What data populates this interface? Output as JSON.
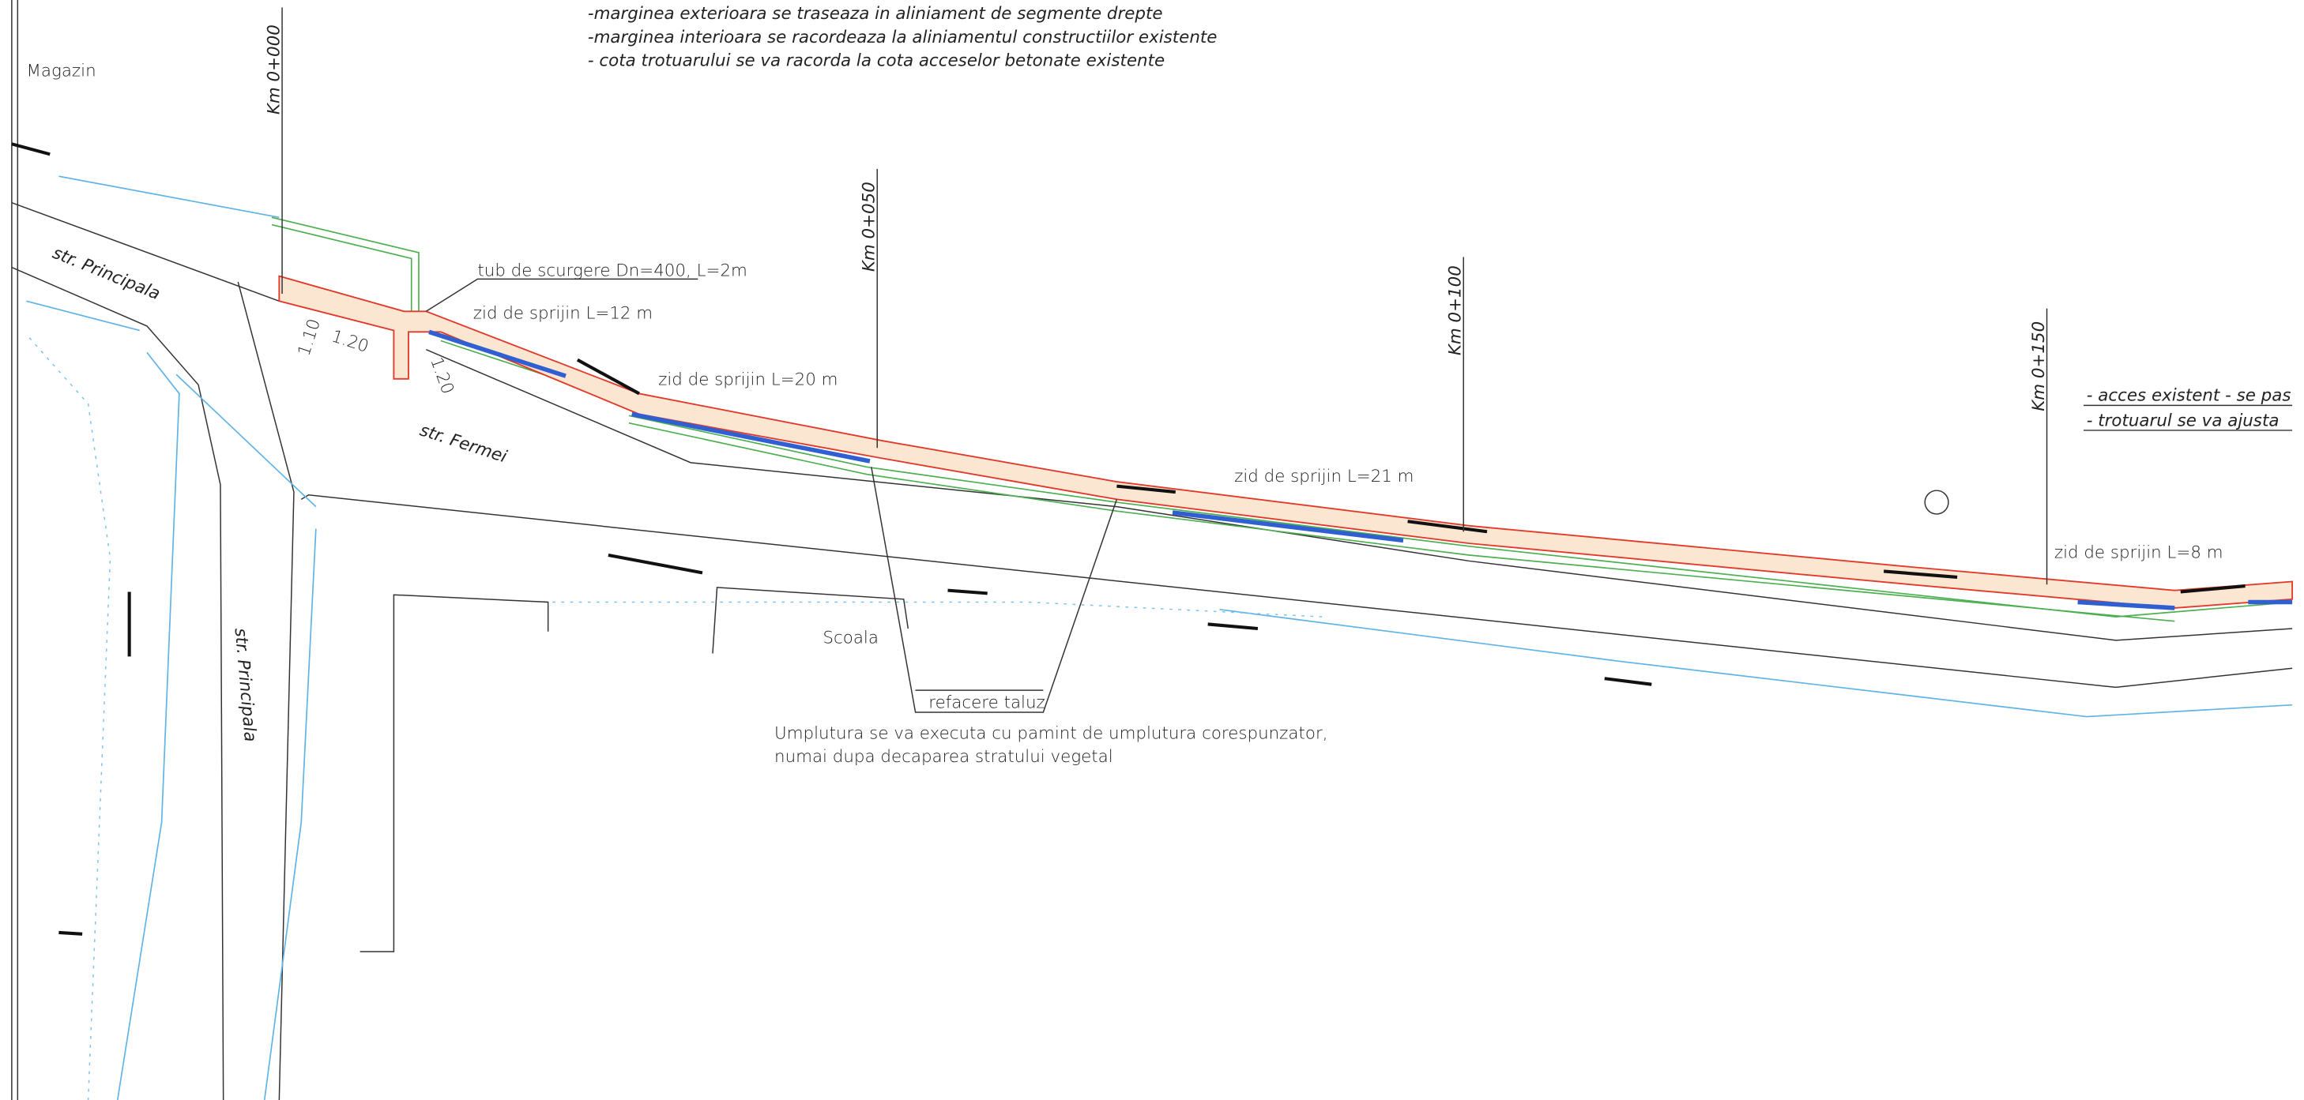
{
  "notes": [
    "-marginea exterioara se traseaza in aliniament de segmente drepte",
    "-marginea interioara se racordeaza la aliniamentul constructiilor existente",
    "- cota trotuarului se va racorda la cota acceselor betonate existente"
  ],
  "right_notes": [
    "- acces existent - se pas",
    "- trotuarul se va ajusta"
  ],
  "places": {
    "magazin": "Magazin",
    "principala_1": "str. Principala",
    "principala_2": "str. Principala",
    "fermei": "str. Fermei",
    "scoala": "Scoala"
  },
  "chainage": [
    "Km 0+000",
    "Km 0+050",
    "Km 0+100",
    "Km 0+150"
  ],
  "annotations": {
    "tub": "tub de scurgere Dn=400, L=2m",
    "zid_12": "zid de sprijin L=12 m",
    "zid_20": "zid de sprijin L=20 m",
    "zid_21": "zid de sprijin L=21 m",
    "zid_8": "zid de sprijin L=8 m",
    "taluz": "refacere taluz",
    "dim_1": "1.20",
    "dim_2": "1.10",
    "dim_3": "1.20"
  },
  "fill_note": [
    "Umplutura se va executa cu pamint de umplutura corespunzator,",
    "numai dupa decaparea stratului vegetal"
  ]
}
